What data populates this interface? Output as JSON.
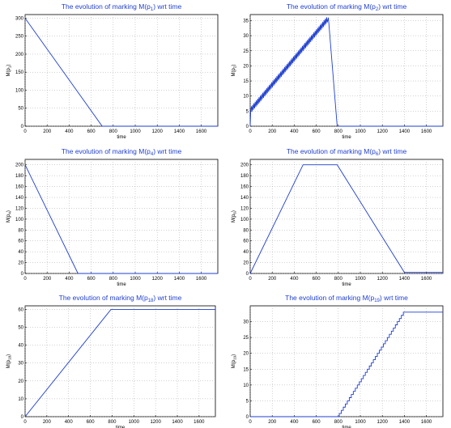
{
  "colors": {
    "series": "#1f3fd0",
    "title": "#1f3fd0",
    "grid": "#9a9a9a"
  },
  "chart_data": [
    {
      "type": "line",
      "title_prefix": "The evolution of marking M(p",
      "title_sub": "1",
      "title_suffix": ") wrt time",
      "xlabel": "time",
      "ylabel_prefix": "M(p",
      "ylabel_sub": "1",
      "ylabel_suffix": ")",
      "xlim": [
        0,
        1750
      ],
      "ylim": [
        0,
        310
      ],
      "xticks": [
        0,
        200,
        400,
        600,
        800,
        1000,
        1200,
        1400,
        1600
      ],
      "yticks": [
        0,
        50,
        100,
        150,
        200,
        250,
        300
      ],
      "grid": true,
      "series": [
        {
          "x": [
            0,
            700,
            1750
          ],
          "y": [
            300,
            0,
            0
          ]
        }
      ]
    },
    {
      "type": "line",
      "title_prefix": "The evolution of marking M(p",
      "title_sub": "2",
      "title_suffix": ") wrt time",
      "xlabel": "time",
      "ylabel_prefix": "M(p",
      "ylabel_sub": "2",
      "ylabel_suffix": ")",
      "xlim": [
        0,
        1750
      ],
      "ylim": [
        0,
        37
      ],
      "xticks": [
        0,
        200,
        400,
        600,
        800,
        1000,
        1200,
        1400,
        1600
      ],
      "yticks": [
        0,
        5,
        10,
        15,
        20,
        25,
        30,
        35
      ],
      "grid": true,
      "series": [
        {
          "x": [
            0,
            5,
            700,
            710,
            790,
            1750
          ],
          "y": [
            0,
            5,
            35,
            36,
            0,
            0
          ],
          "zigzag": [
            5,
            700
          ]
        }
      ]
    },
    {
      "type": "line",
      "title_prefix": "The evolution of marking M(p",
      "title_sub": "4",
      "title_suffix": ") wrt time",
      "xlabel": "time",
      "ylabel_prefix": "M(p",
      "ylabel_sub": "4",
      "ylabel_suffix": ")",
      "xlim": [
        0,
        1750
      ],
      "ylim": [
        0,
        210
      ],
      "xticks": [
        0,
        200,
        400,
        600,
        800,
        1000,
        1200,
        1400,
        1600
      ],
      "yticks": [
        0,
        20,
        40,
        60,
        80,
        100,
        120,
        140,
        160,
        180,
        200
      ],
      "grid": true,
      "series": [
        {
          "x": [
            0,
            480,
            1750
          ],
          "y": [
            200,
            0,
            0
          ]
        }
      ]
    },
    {
      "type": "line",
      "title_prefix": "The evolution of marking M(p",
      "title_sub": "6",
      "title_suffix": ") wrt time",
      "xlabel": "time",
      "ylabel_prefix": "M(p",
      "ylabel_sub": "6",
      "ylabel_suffix": ")",
      "xlim": [
        0,
        1750
      ],
      "ylim": [
        0,
        210
      ],
      "xticks": [
        0,
        200,
        400,
        600,
        800,
        1000,
        1200,
        1400,
        1600
      ],
      "yticks": [
        0,
        20,
        40,
        60,
        80,
        100,
        120,
        140,
        160,
        180,
        200
      ],
      "grid": true,
      "series": [
        {
          "x": [
            0,
            480,
            790,
            1400,
            1750
          ],
          "y": [
            0,
            200,
            200,
            2,
            2
          ]
        }
      ]
    },
    {
      "type": "line",
      "title_prefix": "The evolution of marking M(p",
      "title_sub": "18",
      "title_suffix": ") wrt time",
      "xlabel": "time",
      "ylabel_prefix": "M(p",
      "ylabel_sub": "18",
      "ylabel_suffix": ")",
      "xlim": [
        0,
        1750
      ],
      "ylim": [
        0,
        62
      ],
      "xticks": [
        0,
        200,
        400,
        600,
        800,
        1000,
        1200,
        1400,
        1600
      ],
      "yticks": [
        0,
        10,
        20,
        30,
        40,
        50,
        60
      ],
      "grid": true,
      "series": [
        {
          "x": [
            0,
            790,
            1750
          ],
          "y": [
            0,
            60,
            60
          ]
        }
      ]
    },
    {
      "type": "line",
      "title_prefix": "The evolution of marking M(p",
      "title_sub": "19",
      "title_suffix": ") wrt time",
      "xlabel": "time",
      "ylabel_prefix": "M(p",
      "ylabel_sub": "19",
      "ylabel_suffix": ")",
      "xlim": [
        0,
        1750
      ],
      "ylim": [
        0,
        35
      ],
      "xticks": [
        0,
        200,
        400,
        600,
        800,
        1000,
        1200,
        1400,
        1600
      ],
      "yticks": [
        0,
        5,
        10,
        15,
        20,
        25,
        30
      ],
      "grid": true,
      "series": [
        {
          "x": [
            0,
            800,
            1400,
            1750
          ],
          "y": [
            0,
            0,
            33,
            33
          ],
          "staircase": [
            800,
            1400
          ]
        }
      ]
    }
  ]
}
